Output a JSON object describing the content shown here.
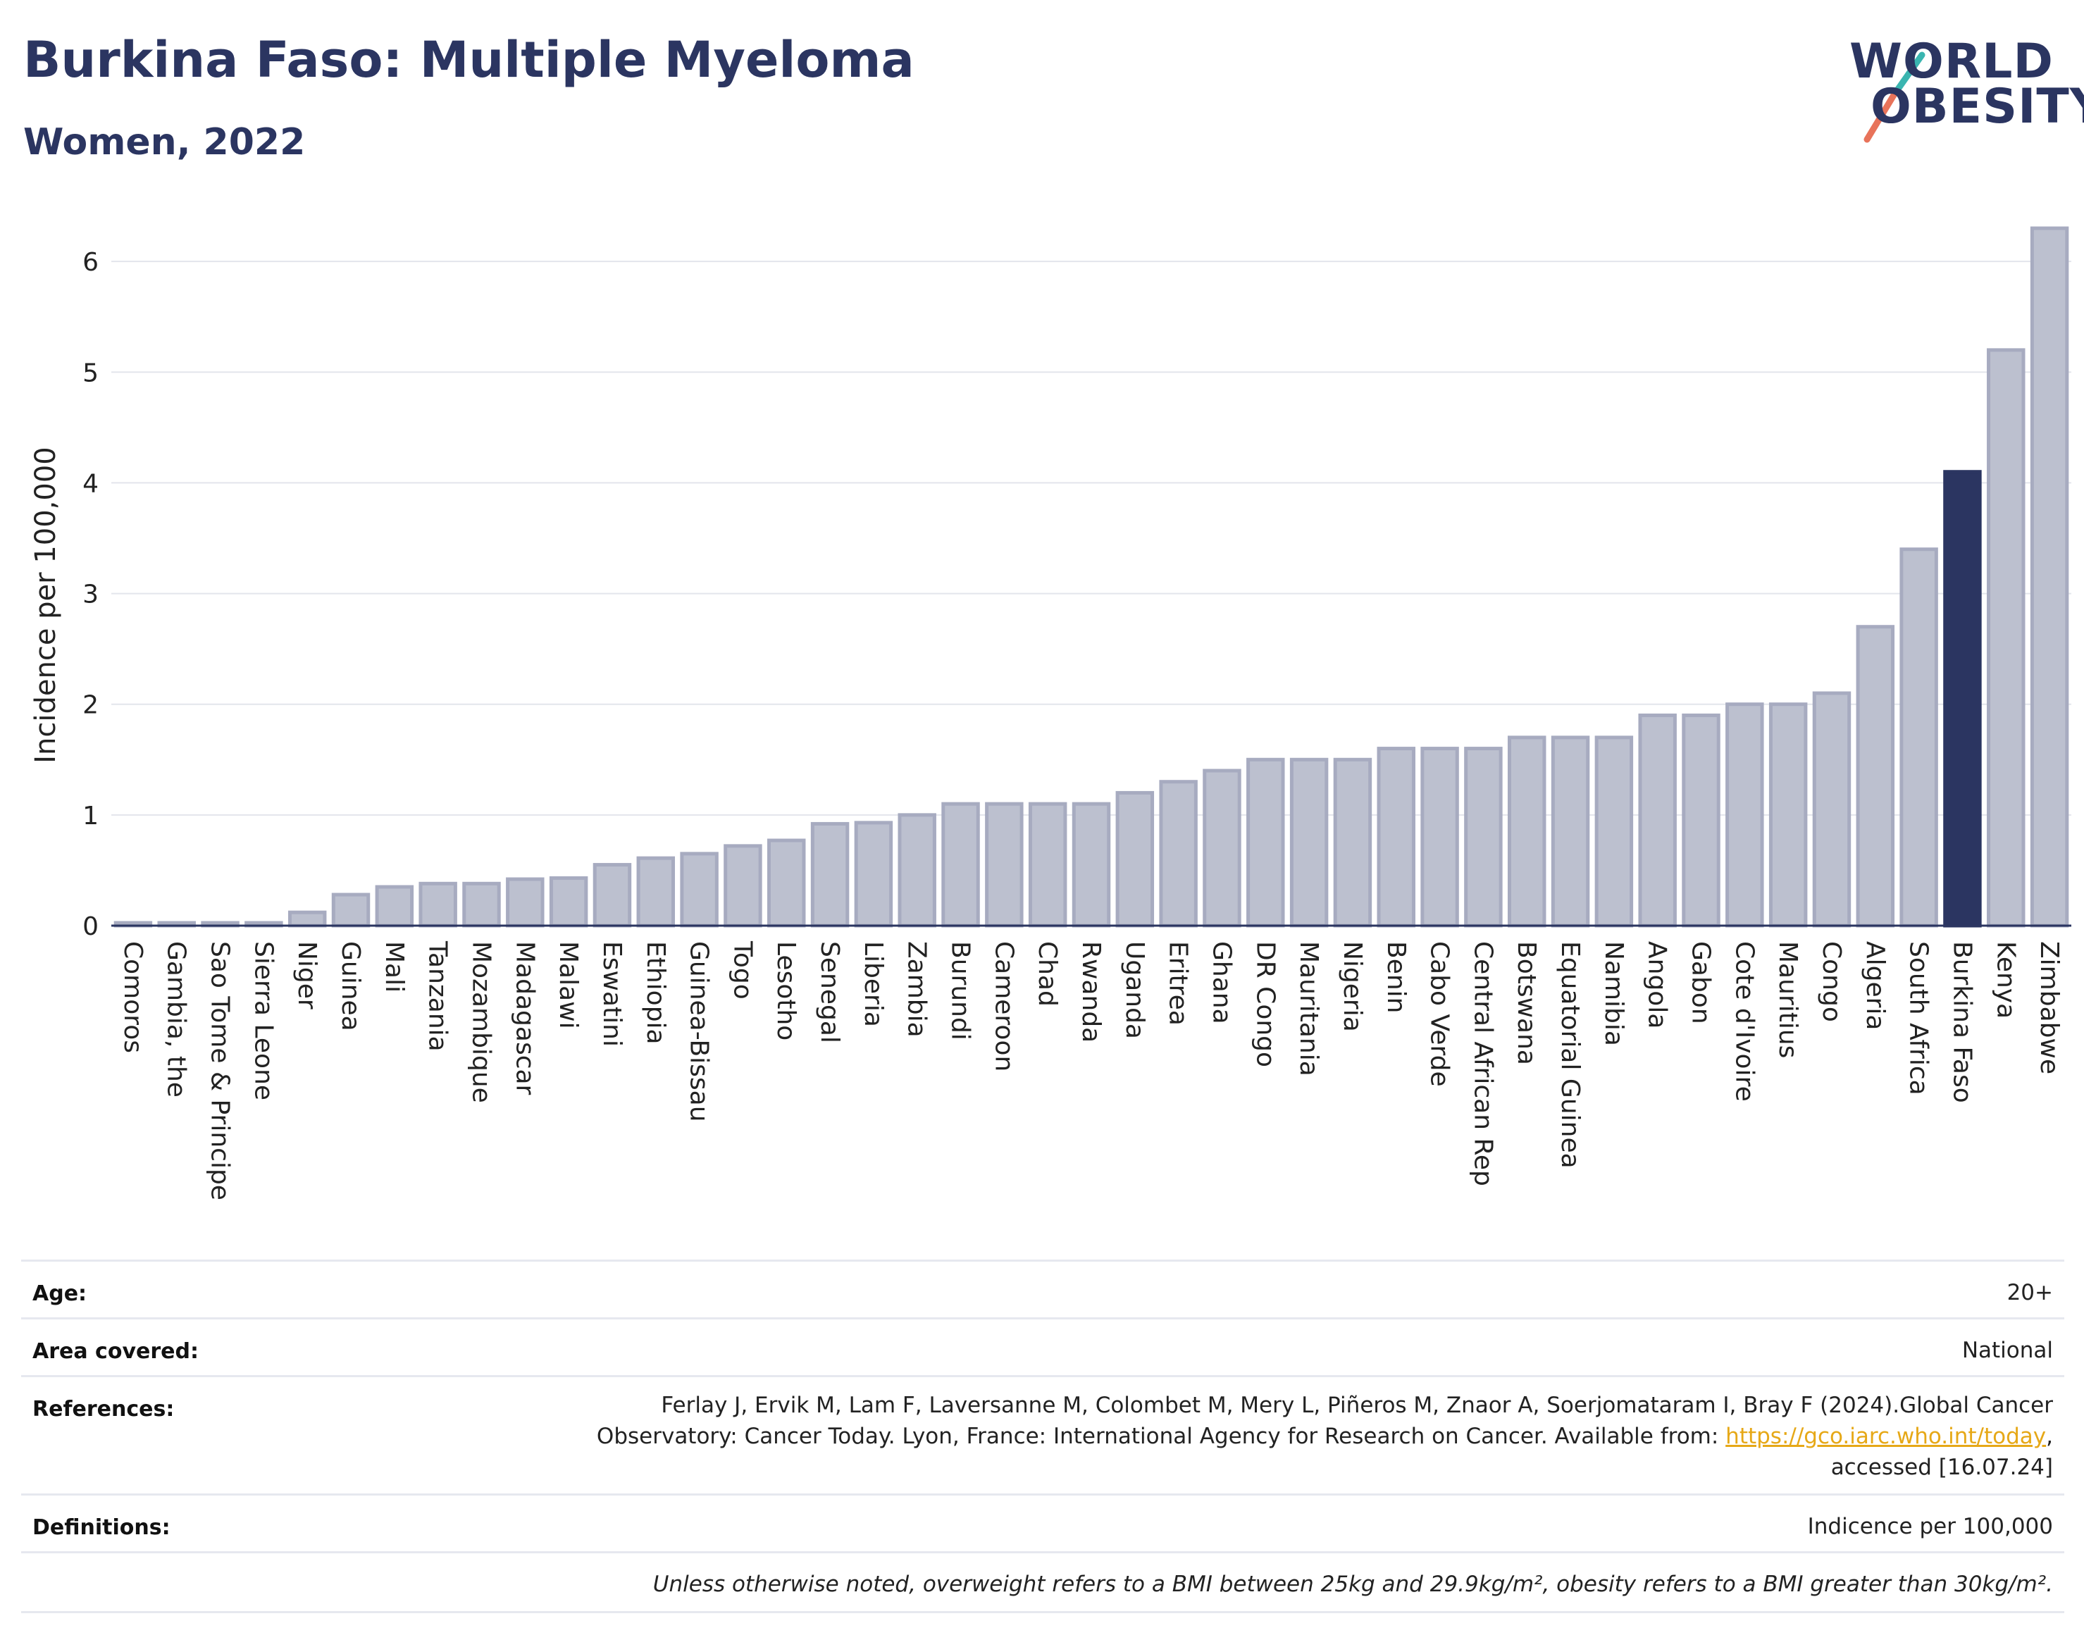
{
  "header": {
    "title": "Burkina Faso: Multiple Myeloma",
    "subtitle": "Women, 2022",
    "logo_line1": "WORLD",
    "logo_line2": "OBESITY"
  },
  "colors": {
    "title": "#2b3561",
    "bar_default": "#bcc0cf",
    "bar_default_stroke": "#a7abc0",
    "bar_highlight": "#2b3561",
    "logo_slash_top": "#3ab5b0",
    "logo_slash_bottom": "#e8735a",
    "link": "#e6a817"
  },
  "chart_data": {
    "type": "bar",
    "ylabel": "Incidence per 100,000",
    "xlabel": "",
    "ylim": [
      0,
      6.3
    ],
    "yticks": [
      0,
      1,
      2,
      3,
      4,
      5,
      6
    ],
    "grid": true,
    "highlight": "Burkina Faso",
    "categories": [
      "Comoros",
      "Gambia, the",
      "Sao Tome & Principe",
      "Sierra Leone",
      "Niger",
      "Guinea",
      "Mali",
      "Tanzania",
      "Mozambique",
      "Madagascar",
      "Malawi",
      "Eswatini",
      "Ethiopia",
      "Guinea-Bissau",
      "Togo",
      "Lesotho",
      "Senegal",
      "Liberia",
      "Zambia",
      "Burundi",
      "Cameroon",
      "Chad",
      "Rwanda",
      "Uganda",
      "Eritrea",
      "Ghana",
      "DR Congo",
      "Mauritania",
      "Nigeria",
      "Benin",
      "Cabo Verde",
      "Central African Rep",
      "Botswana",
      "Equatorial Guinea",
      "Namibia",
      "Angola",
      "Gabon",
      "Cote d'Ivoire",
      "Mauritius",
      "Congo",
      "Algeria",
      "South Africa",
      "Burkina Faso",
      "Kenya",
      "Zimbabwe"
    ],
    "values": [
      0.02,
      0.02,
      0.02,
      0.02,
      0.12,
      0.28,
      0.35,
      0.38,
      0.38,
      0.42,
      0.43,
      0.55,
      0.61,
      0.65,
      0.72,
      0.77,
      0.92,
      0.93,
      1.0,
      1.1,
      1.1,
      1.1,
      1.1,
      1.2,
      1.3,
      1.4,
      1.5,
      1.5,
      1.5,
      1.6,
      1.6,
      1.6,
      1.7,
      1.7,
      1.7,
      1.9,
      1.9,
      2.0,
      2.0,
      2.1,
      2.7,
      3.4,
      4.1,
      5.2,
      6.3
    ]
  },
  "meta": {
    "age_label": "Age:",
    "age_value": "20+",
    "area_label": "Area covered:",
    "area_value": "National",
    "references_label": "References:",
    "references_line1": "Ferlay J, Ervik M, Lam F, Laversanne M, Colombet M, Mery L, Piñeros M, Znaor A, Soerjomataram I, Bray F (2024).Global Cancer",
    "references_line2_pre": "Observatory: Cancer Today. Lyon, France: International Agency for Research on Cancer. Available from: ",
    "references_link": "https://gco.iarc.who.int/today",
    "references_line2_post": ",",
    "references_line3": "accessed [16.07.24]",
    "definitions_label": "Definitions:",
    "definitions_value": "Indicence per 100,000",
    "footnote": "Unless otherwise noted, overweight refers to a BMI between 25kg and 29.9kg/m², obesity refers to a BMI greater than 30kg/m²."
  }
}
